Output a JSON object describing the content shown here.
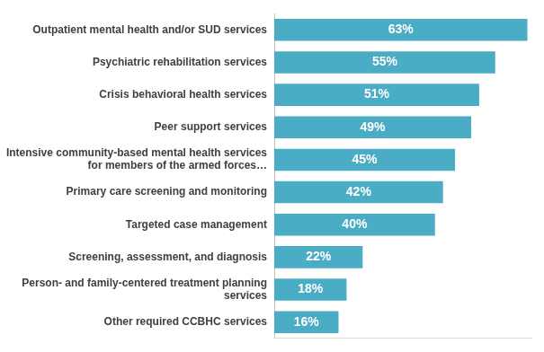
{
  "chart_data": {
    "type": "bar",
    "orientation": "horizontal",
    "categories": [
      "Outpatient mental health and/or SUD services",
      "Psychiatric rehabilitation services",
      "Crisis behavioral health services",
      "Peer support services",
      "Intensive community-based mental health services for members of the armed forces…",
      "Primary care screening and monitoring",
      "Targeted case management",
      "Screening, assessment, and diagnosis",
      "Person- and family-centered treatment planning services",
      "Other required CCBHC services"
    ],
    "values": [
      63,
      55,
      51,
      49,
      45,
      42,
      40,
      22,
      18,
      16
    ],
    "value_labels": [
      "63%",
      "55%",
      "51%",
      "49%",
      "45%",
      "42%",
      "40%",
      "22%",
      "18%",
      "16%"
    ],
    "color": "#4bacc6",
    "xlim": [
      0,
      64
    ],
    "grid": false,
    "data_labels": true,
    "tick_labels": "y"
  }
}
